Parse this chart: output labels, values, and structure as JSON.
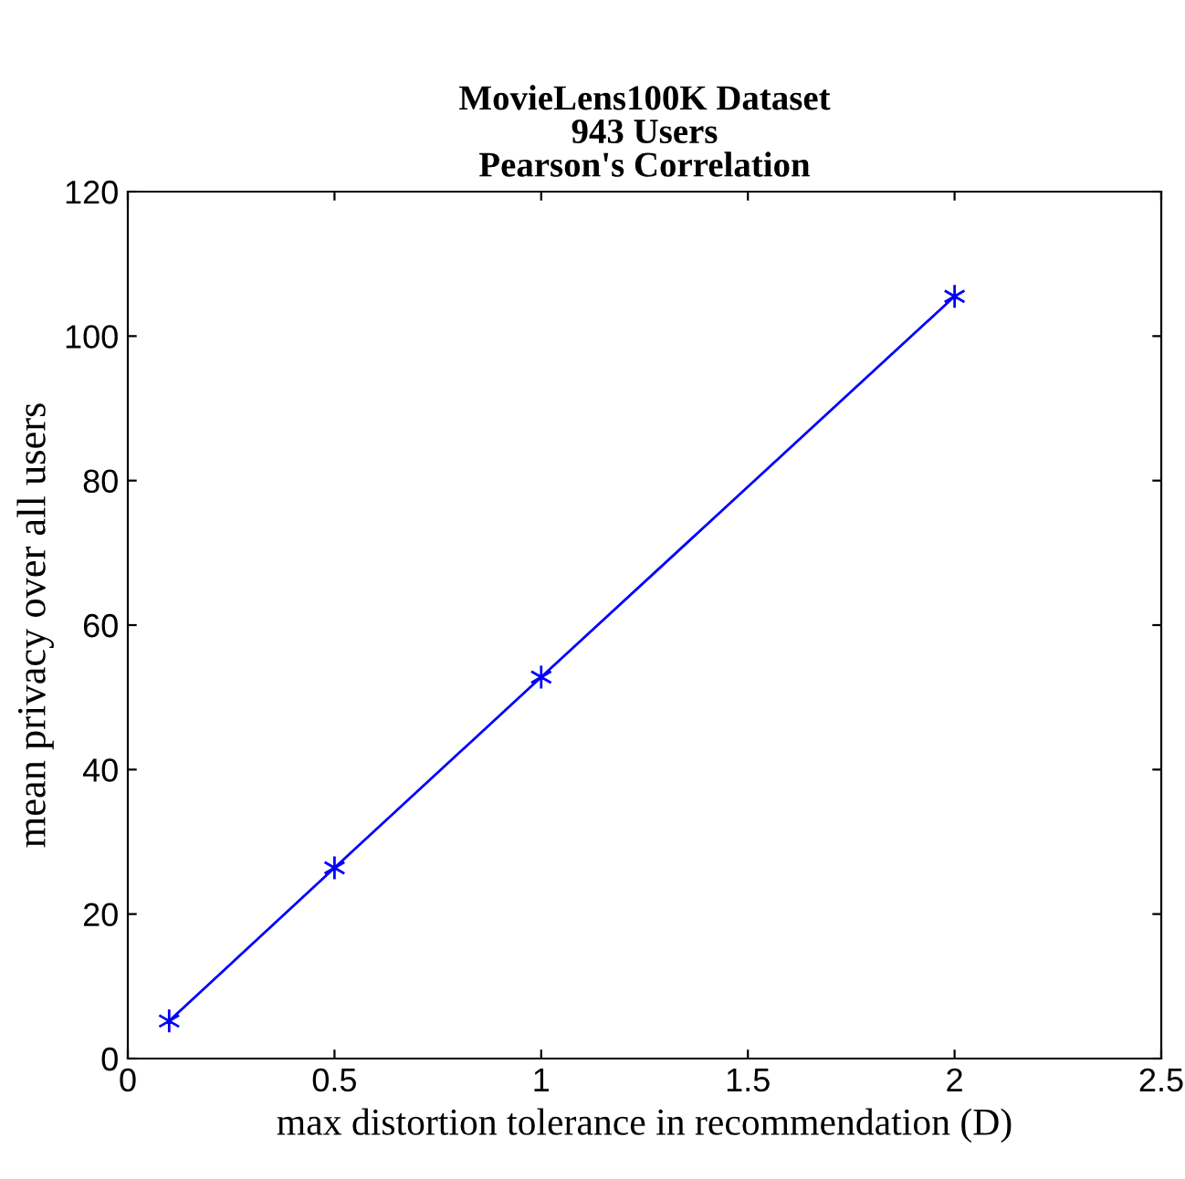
{
  "chart_data": {
    "type": "line",
    "title": "MovieLens100K Dataset\n943 Users\nPearson's Correlation",
    "xlabel": "max distortion tolerance in recommendation (D)",
    "ylabel": "mean privacy over all users",
    "x": [
      0.1,
      0.5,
      1,
      2
    ],
    "series": [
      {
        "color": "#0000ff",
        "values": [
          5.2,
          26.4,
          52.8,
          105.5
        ]
      }
    ],
    "marker": "cross",
    "line_style": "solid",
    "grid": false,
    "xlim": [
      0,
      2.5
    ],
    "xticks": [
      0,
      0.5,
      1,
      1.5,
      2,
      2.5
    ],
    "ylim": [
      0,
      120
    ],
    "yticks": [
      0,
      20,
      40,
      60,
      80,
      100,
      120
    ]
  }
}
